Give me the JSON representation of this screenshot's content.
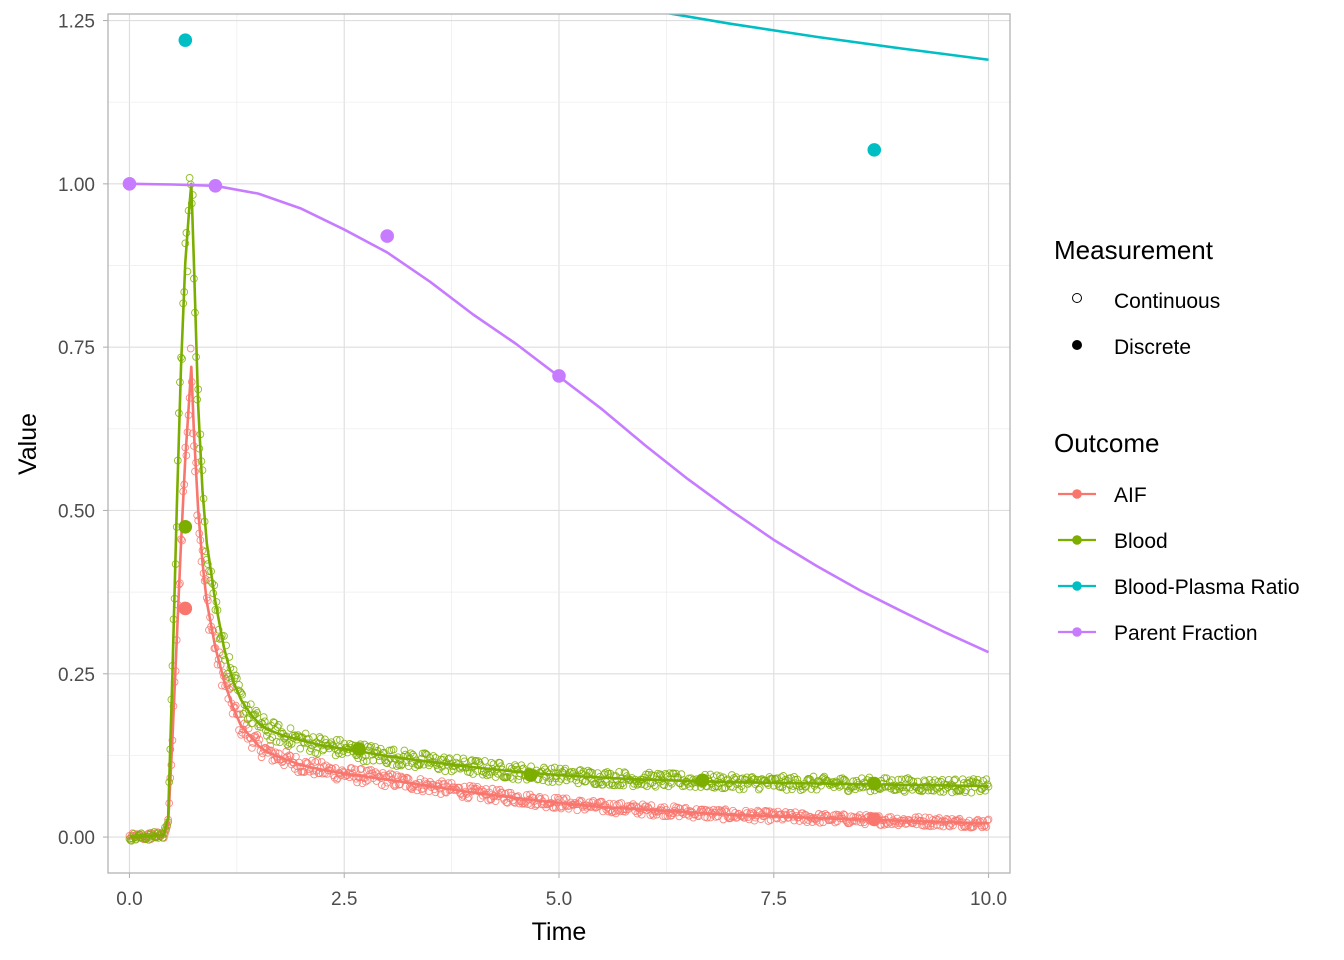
{
  "chart_data": {
    "type": "line",
    "xlabel": "Time",
    "ylabel": "Value",
    "xlim": [
      -0.25,
      10.25
    ],
    "ylim": [
      -0.055,
      1.26
    ],
    "x_ticks": [
      0,
      2.5,
      5,
      7.5,
      10
    ],
    "x_tick_labels": [
      "0.0",
      "2.5",
      "5.0",
      "7.5",
      "10.0"
    ],
    "y_ticks": [
      0,
      0.25,
      0.5,
      0.75,
      1.0,
      1.25
    ],
    "y_tick_labels": [
      "0.00",
      "0.25",
      "0.50",
      "0.75",
      "1.00",
      "1.25"
    ],
    "grid": true,
    "legend_position": "right",
    "legends": {
      "measurement": {
        "title": "Measurement",
        "items": [
          {
            "label": "Continuous",
            "shape": "open-circle"
          },
          {
            "label": "Discrete",
            "shape": "filled-circle"
          }
        ]
      },
      "outcome": {
        "title": "Outcome",
        "items": [
          {
            "label": "AIF",
            "color": "#F8766D"
          },
          {
            "label": "Blood",
            "color": "#7CAE00"
          },
          {
            "label": "Blood-Plasma Ratio",
            "color": "#00BFC4"
          },
          {
            "label": "Parent Fraction",
            "color": "#C77CFF"
          }
        ]
      }
    },
    "series": [
      {
        "name": "AIF",
        "color": "#F8766D",
        "curve": {
          "x": [
            0,
            0.1,
            0.2,
            0.3,
            0.4,
            0.45,
            0.5,
            0.55,
            0.6,
            0.65,
            0.7,
            0.72,
            0.75,
            0.8,
            0.85,
            0.9,
            1.0,
            1.1,
            1.2,
            1.3,
            1.4,
            1.5,
            1.6,
            1.8,
            2.0,
            2.25,
            2.5,
            3.0,
            3.5,
            4.0,
            4.5,
            5.0,
            5.5,
            6.0,
            6.5,
            7.0,
            7.5,
            8.0,
            8.5,
            9.0,
            9.5,
            10.0
          ],
          "y": [
            0.0,
            0.0,
            0.001,
            0.002,
            0.003,
            0.02,
            0.15,
            0.3,
            0.45,
            0.58,
            0.68,
            0.72,
            0.62,
            0.5,
            0.42,
            0.36,
            0.29,
            0.24,
            0.2,
            0.17,
            0.155,
            0.14,
            0.13,
            0.12,
            0.11,
            0.103,
            0.097,
            0.088,
            0.078,
            0.068,
            0.06,
            0.052,
            0.046,
            0.042,
            0.038,
            0.034,
            0.032,
            0.029,
            0.027,
            0.025,
            0.023,
            0.021
          ]
        },
        "discrete": {
          "x": [
            0.65,
            8.67
          ],
          "y": [
            0.35,
            0.027
          ]
        }
      },
      {
        "name": "Blood",
        "color": "#7CAE00",
        "curve": {
          "x": [
            0,
            0.1,
            0.2,
            0.3,
            0.4,
            0.45,
            0.5,
            0.55,
            0.6,
            0.65,
            0.7,
            0.72,
            0.75,
            0.8,
            0.85,
            0.9,
            1.0,
            1.1,
            1.2,
            1.3,
            1.4,
            1.5,
            1.6,
            1.8,
            2.0,
            2.25,
            2.5,
            3.0,
            3.5,
            4.0,
            4.5,
            5.0,
            5.5,
            6.0,
            6.5,
            7.0,
            7.5,
            8.0,
            8.5,
            9.0,
            9.5,
            10.0
          ],
          "y": [
            0.0,
            0.0,
            0.001,
            0.002,
            0.003,
            0.03,
            0.25,
            0.5,
            0.72,
            0.88,
            0.97,
            1.0,
            0.88,
            0.66,
            0.53,
            0.45,
            0.36,
            0.29,
            0.24,
            0.21,
            0.19,
            0.175,
            0.165,
            0.155,
            0.148,
            0.14,
            0.135,
            0.124,
            0.115,
            0.107,
            0.1,
            0.095,
            0.091,
            0.088,
            0.086,
            0.084,
            0.083,
            0.082,
            0.081,
            0.08,
            0.079,
            0.078
          ]
        },
        "discrete": {
          "x": [
            0.65,
            2.67,
            4.67,
            6.67,
            8.67
          ],
          "y": [
            0.475,
            0.135,
            0.095,
            0.087,
            0.082
          ]
        }
      },
      {
        "name": "Blood-Plasma Ratio",
        "color": "#00BFC4",
        "curve": {
          "x": [
            6.1,
            7.0,
            8.0,
            9.0,
            10.0
          ],
          "y": [
            1.265,
            1.245,
            1.225,
            1.207,
            1.19
          ]
        },
        "discrete": {
          "x": [
            0.65,
            8.67
          ],
          "y": [
            1.22,
            1.052
          ]
        }
      },
      {
        "name": "Parent Fraction",
        "color": "#C77CFF",
        "curve": {
          "x": [
            0,
            0.5,
            1.0,
            1.5,
            2.0,
            2.5,
            3.0,
            3.5,
            4.0,
            4.5,
            5.0,
            5.5,
            6.0,
            6.5,
            7.0,
            7.5,
            8.0,
            8.5,
            9.0,
            9.5,
            10.0
          ],
          "y": [
            1.0,
            0.999,
            0.997,
            0.985,
            0.962,
            0.93,
            0.895,
            0.85,
            0.8,
            0.755,
            0.705,
            0.655,
            0.6,
            0.548,
            0.5,
            0.455,
            0.415,
            0.378,
            0.345,
            0.313,
            0.283
          ]
        },
        "discrete": {
          "x": [
            0,
            1.0,
            3.0,
            5.0
          ],
          "y": [
            1.0,
            0.997,
            0.92,
            0.706
          ]
        }
      }
    ]
  }
}
